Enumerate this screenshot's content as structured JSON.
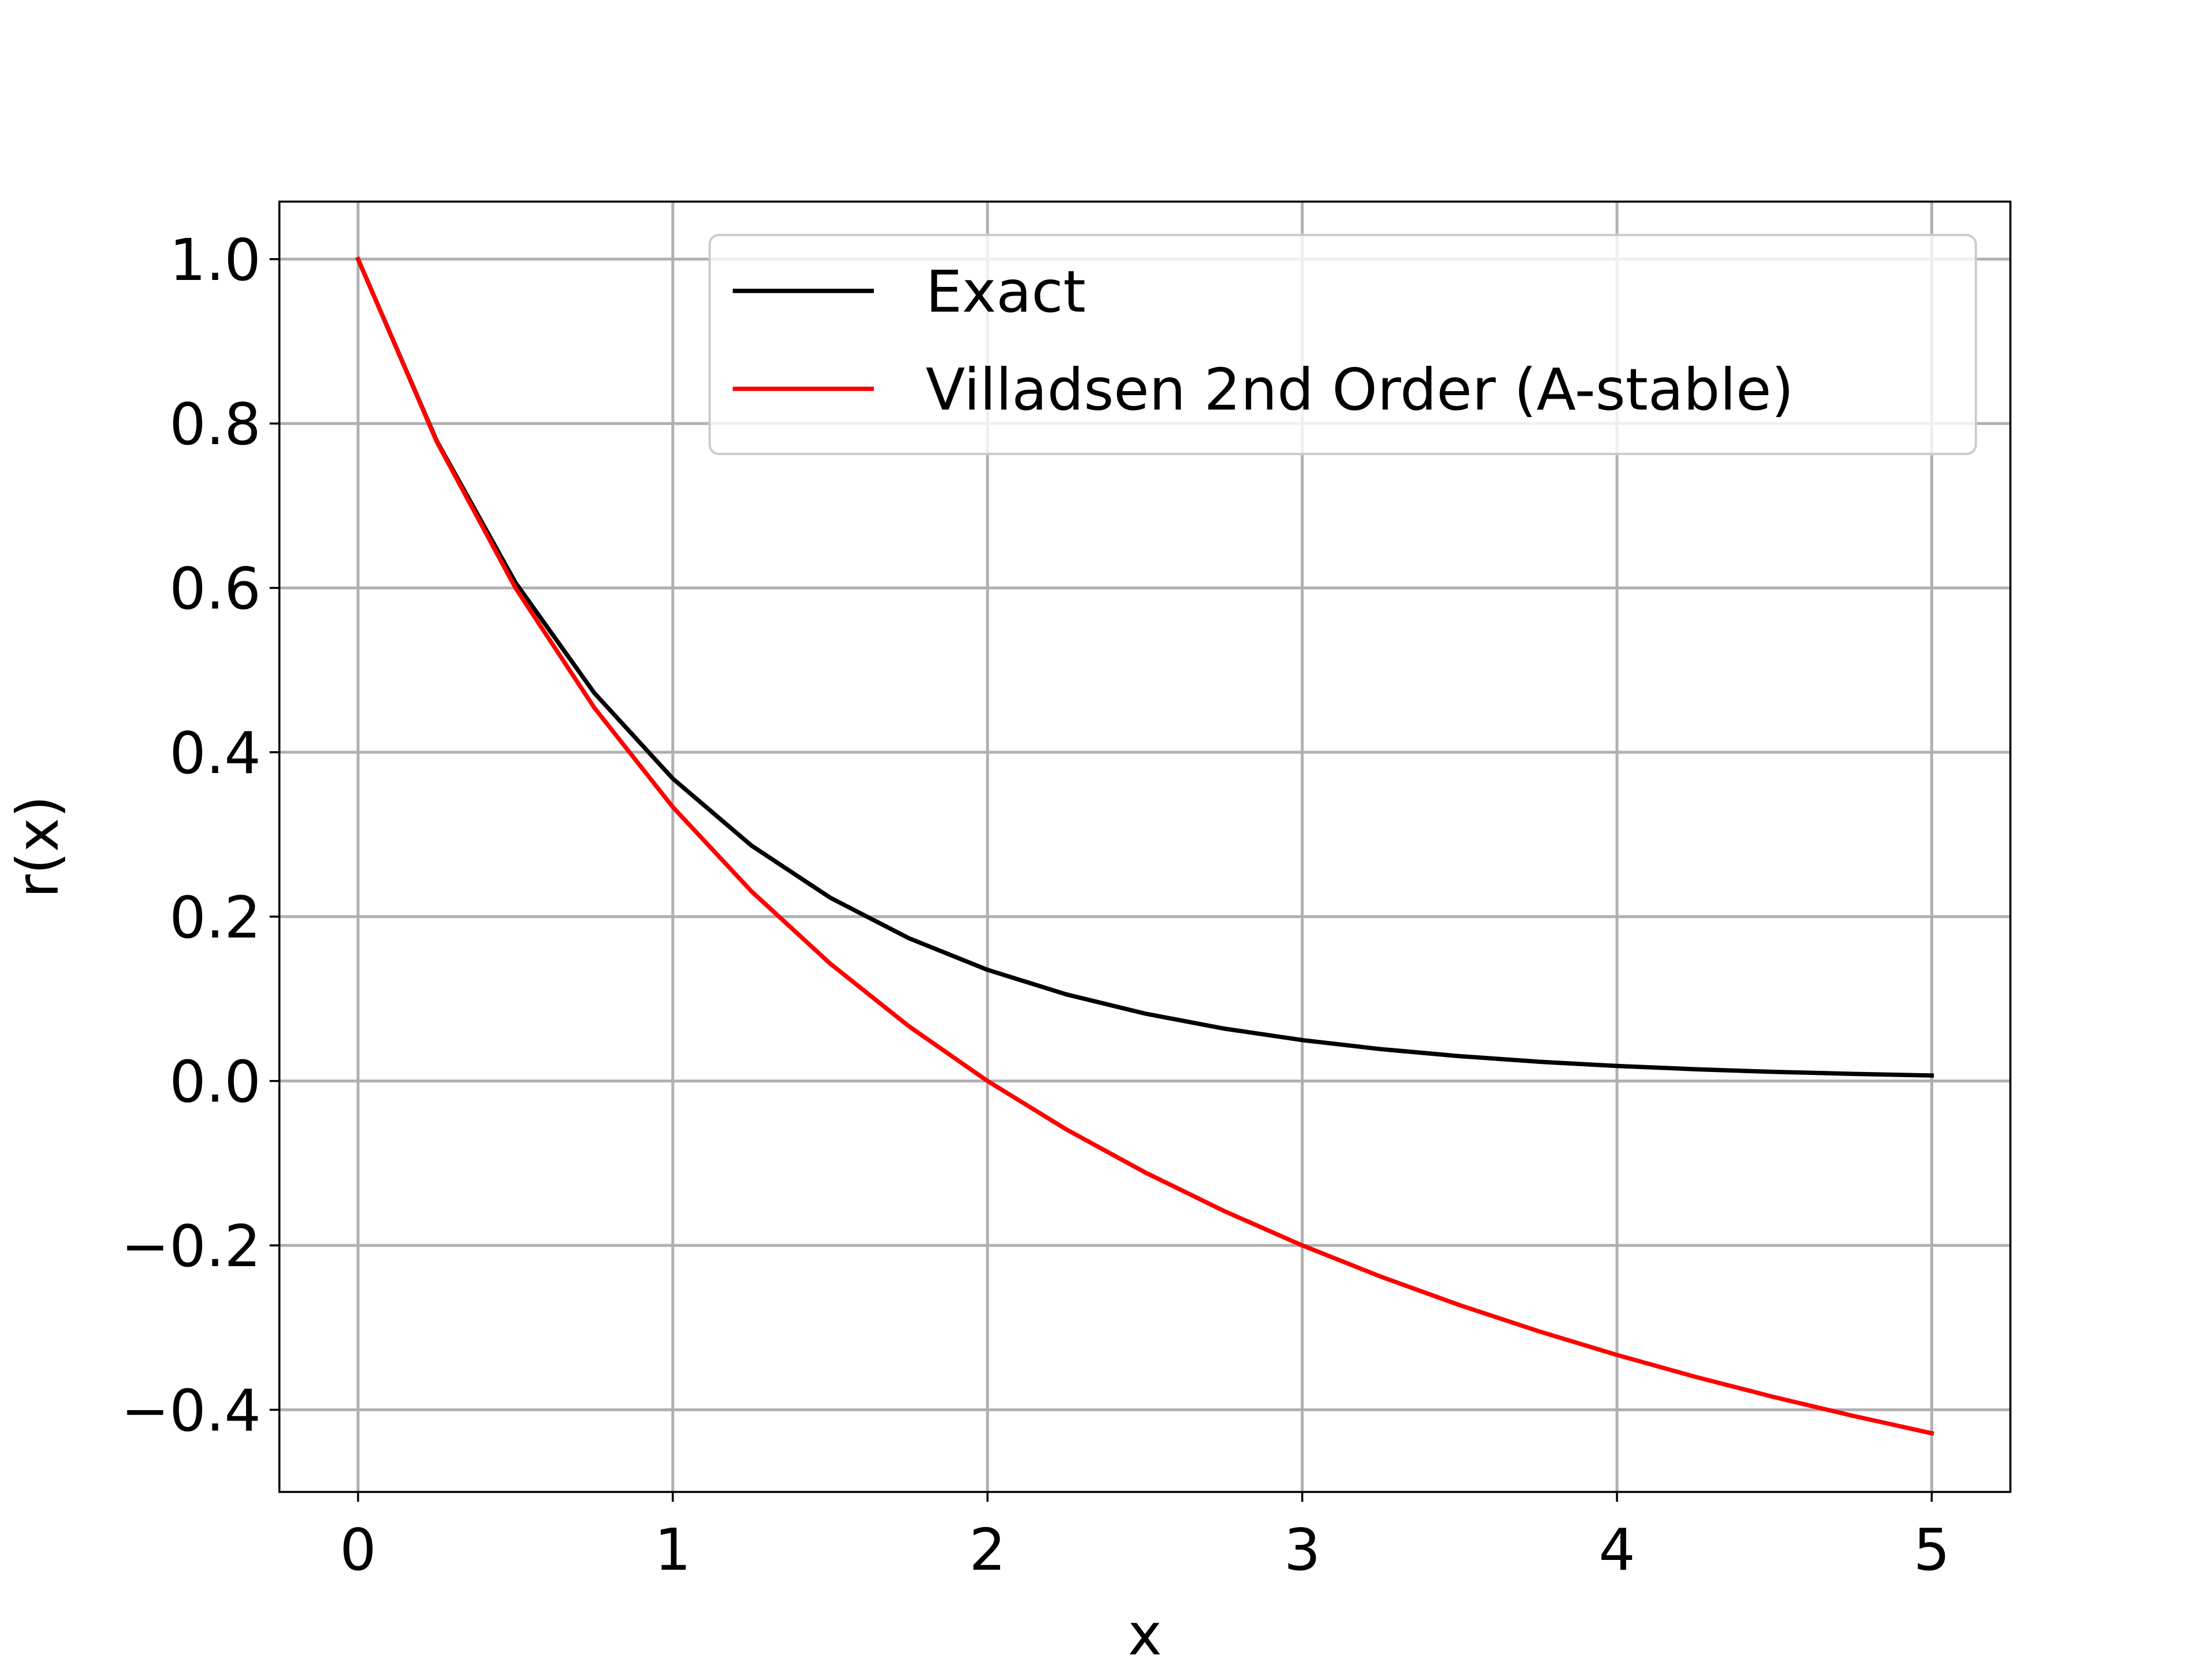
{
  "chart_data": {
    "type": "line",
    "title": "",
    "xlabel": "x",
    "ylabel": "r(x)",
    "xlim": [
      -0.25,
      5.25
    ],
    "ylim": [
      -0.5,
      1.07
    ],
    "xticks": [
      0,
      1,
      2,
      3,
      4,
      5
    ],
    "xtick_labels": [
      "0",
      "1",
      "2",
      "3",
      "4",
      "5"
    ],
    "yticks": [
      -0.4,
      -0.2,
      0.0,
      0.2,
      0.4,
      0.6,
      0.8,
      1.0
    ],
    "ytick_labels": [
      "−0.4",
      "−0.2",
      "0.0",
      "0.2",
      "0.4",
      "0.6",
      "0.8",
      "1.0"
    ],
    "grid": true,
    "legend_position": "top-right",
    "series": [
      {
        "name": "Exact",
        "color": "#000000",
        "x": [
          0,
          0.25,
          0.5,
          0.75,
          1.0,
          1.25,
          1.5,
          1.75,
          2.0,
          2.25,
          2.5,
          2.75,
          3.0,
          3.25,
          3.5,
          3.75,
          4.0,
          4.25,
          4.5,
          4.75,
          5.0
        ],
        "y": [
          1.0,
          0.7788,
          0.6065,
          0.4724,
          0.3679,
          0.2865,
          0.2231,
          0.1738,
          0.1353,
          0.1054,
          0.0821,
          0.0639,
          0.0498,
          0.0388,
          0.0302,
          0.0235,
          0.0183,
          0.0143,
          0.0111,
          0.0087,
          0.0067
        ]
      },
      {
        "name": "Villadsen 2nd Order (A-stable)",
        "color": "#ff0000",
        "x": [
          0,
          0.25,
          0.5,
          0.75,
          1.0,
          1.25,
          1.5,
          1.75,
          2.0,
          2.25,
          2.5,
          2.75,
          3.0,
          3.25,
          3.5,
          3.75,
          4.0,
          4.25,
          4.5,
          4.75,
          5.0
        ],
        "y": [
          1.0,
          0.7778,
          0.6,
          0.4545,
          0.3333,
          0.2308,
          0.1429,
          0.0667,
          0.0,
          -0.0588,
          -0.1111,
          -0.1579,
          -0.2,
          -0.2381,
          -0.2727,
          -0.3043,
          -0.3333,
          -0.36,
          -0.3846,
          -0.4074,
          -0.4286
        ]
      }
    ]
  }
}
